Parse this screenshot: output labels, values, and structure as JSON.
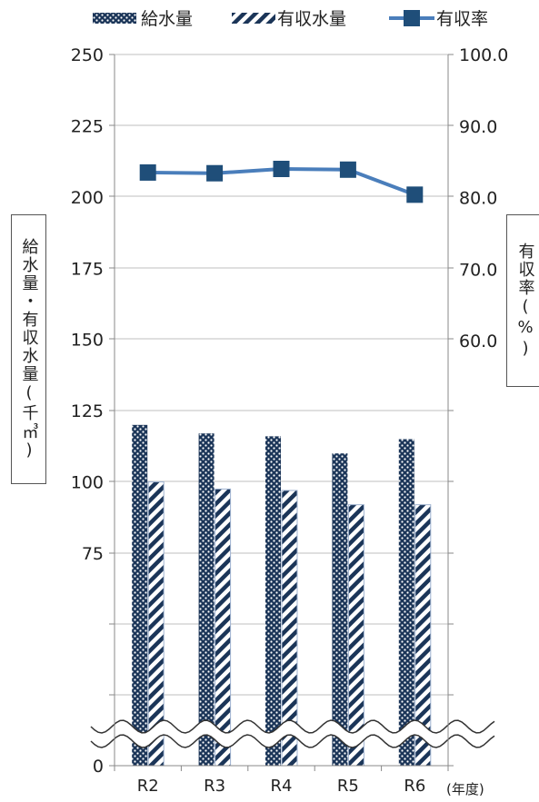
{
  "chart_data": {
    "type": "bar",
    "categories": [
      "R2",
      "R3",
      "R4",
      "R5",
      "R6"
    ],
    "series": [
      {
        "name": "給水量",
        "type": "bar",
        "axis": "left",
        "pattern": "dots",
        "color": "#1b3558",
        "values": [
          120,
          117,
          116,
          110,
          115
        ]
      },
      {
        "name": "有収水量",
        "type": "bar",
        "axis": "left",
        "pattern": "diagonal-stripes",
        "color": "#1b3558",
        "values": [
          100,
          97.5,
          97,
          92,
          92
        ]
      },
      {
        "name": "有収率",
        "type": "line",
        "axis": "right",
        "marker": "square",
        "color": "#4a7ebb",
        "values": [
          83.5,
          83.4,
          84.0,
          83.9,
          80.4
        ]
      }
    ],
    "left_axis": {
      "label": "給水量・有収水量(千㎥)",
      "tick_labels": [
        "0",
        "75",
        "100",
        "125",
        "150",
        "175",
        "200",
        "225",
        "250"
      ],
      "broken": true
    },
    "right_axis": {
      "label": "有収率(%)",
      "tick_labels": [
        "60.0",
        "70.0",
        "80.0",
        "90.0",
        "100.0"
      ],
      "ylim": [
        0,
        100
      ]
    },
    "x_unit": "(年度)",
    "legend_position": "top",
    "grid": true
  },
  "colors": {
    "bar": "#1b3558",
    "line": "#4a7ebb",
    "grid": "#bfbfbf"
  }
}
